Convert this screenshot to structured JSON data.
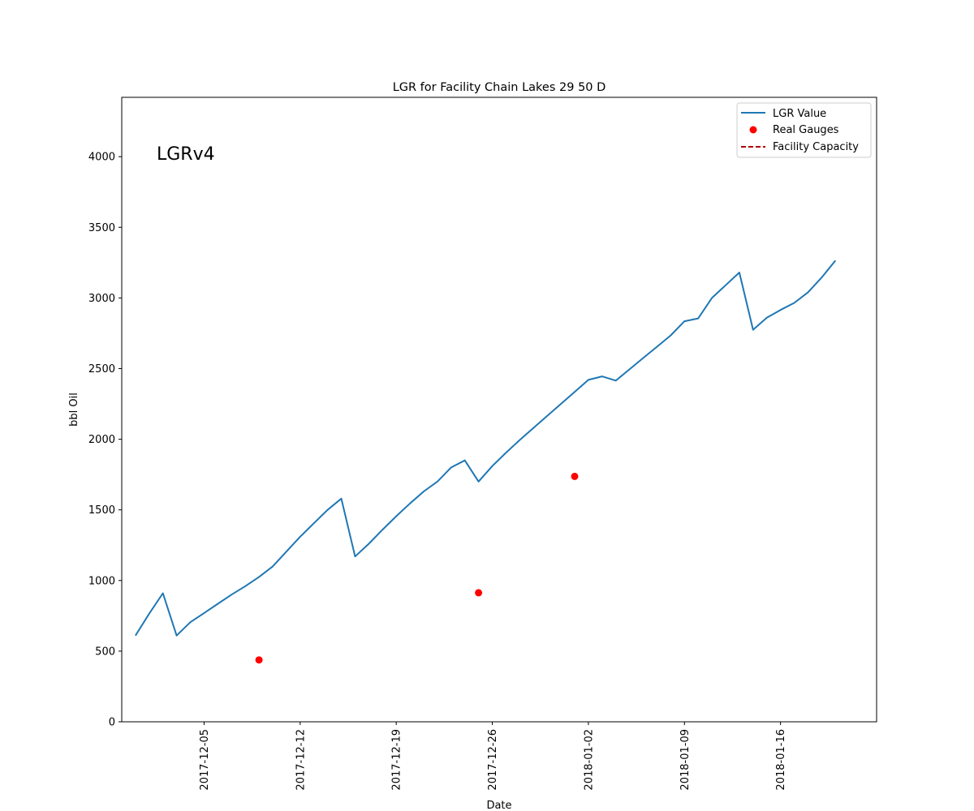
{
  "chart_data": {
    "type": "line",
    "title": "LGR for Facility Chain Lakes 29 50 D",
    "annotation": "LGRv4",
    "xlabel": "Date",
    "ylabel": "bbl Oil",
    "xlim": [
      "2017-11-29",
      "2018-01-23"
    ],
    "ylim": [
      0,
      4420
    ],
    "x_ticks": [
      "2017-12-05",
      "2017-12-12",
      "2017-12-19",
      "2017-12-26",
      "2018-01-02",
      "2018-01-09",
      "2018-01-16"
    ],
    "y_ticks": [
      0,
      500,
      1000,
      1500,
      2000,
      2500,
      3000,
      3500,
      4000
    ],
    "legend": {
      "position": "top-right",
      "entries": [
        "LGR Value",
        "Real Gauges",
        "Facility Capacity"
      ]
    },
    "series": [
      {
        "name": "LGR Value",
        "kind": "line",
        "color": "#1f77b4",
        "x": [
          "2017-11-30",
          "2017-12-01",
          "2017-12-02",
          "2017-12-03",
          "2017-12-04",
          "2017-12-05",
          "2017-12-06",
          "2017-12-07",
          "2017-12-08",
          "2017-12-09",
          "2017-12-10",
          "2017-12-11",
          "2017-12-12",
          "2017-12-13",
          "2017-12-14",
          "2017-12-15",
          "2017-12-16",
          "2017-12-17",
          "2017-12-18",
          "2017-12-19",
          "2017-12-20",
          "2017-12-21",
          "2017-12-22",
          "2017-12-23",
          "2017-12-24",
          "2017-12-25",
          "2017-12-26",
          "2017-12-27",
          "2017-12-28",
          "2017-12-29",
          "2017-12-30",
          "2017-12-31",
          "2018-01-01",
          "2018-01-02",
          "2018-01-03",
          "2018-01-04",
          "2018-01-05",
          "2018-01-06",
          "2018-01-07",
          "2018-01-08",
          "2018-01-09",
          "2018-01-10",
          "2018-01-11",
          "2018-01-12",
          "2018-01-13",
          "2018-01-14",
          "2018-01-15",
          "2018-01-16",
          "2018-01-17",
          "2018-01-18",
          "2018-01-19",
          "2018-01-20"
        ],
        "y": [
          610,
          765,
          910,
          610,
          705,
          770,
          835,
          900,
          960,
          1025,
          1100,
          1205,
          1310,
          1405,
          1500,
          1580,
          1170,
          1260,
          1360,
          1455,
          1545,
          1630,
          1700,
          1800,
          1850,
          1700,
          1810,
          1905,
          1995,
          2080,
          2165,
          2250,
          2335,
          2420,
          2445,
          2415,
          2495,
          2575,
          2655,
          2735,
          2835,
          2855,
          3000,
          3090,
          3180,
          2775,
          2860,
          2915,
          2965,
          3040,
          3145,
          3265
        ]
      },
      {
        "name": "Real Gauges",
        "kind": "scatter",
        "color": "#ff0000",
        "x": [
          "2017-12-09",
          "2017-12-25",
          "2018-01-01"
        ],
        "y": [
          438,
          913,
          1737
        ]
      },
      {
        "name": "Facility Capacity",
        "kind": "dashed-line",
        "color": "#b00000",
        "x": [],
        "y": []
      }
    ]
  }
}
